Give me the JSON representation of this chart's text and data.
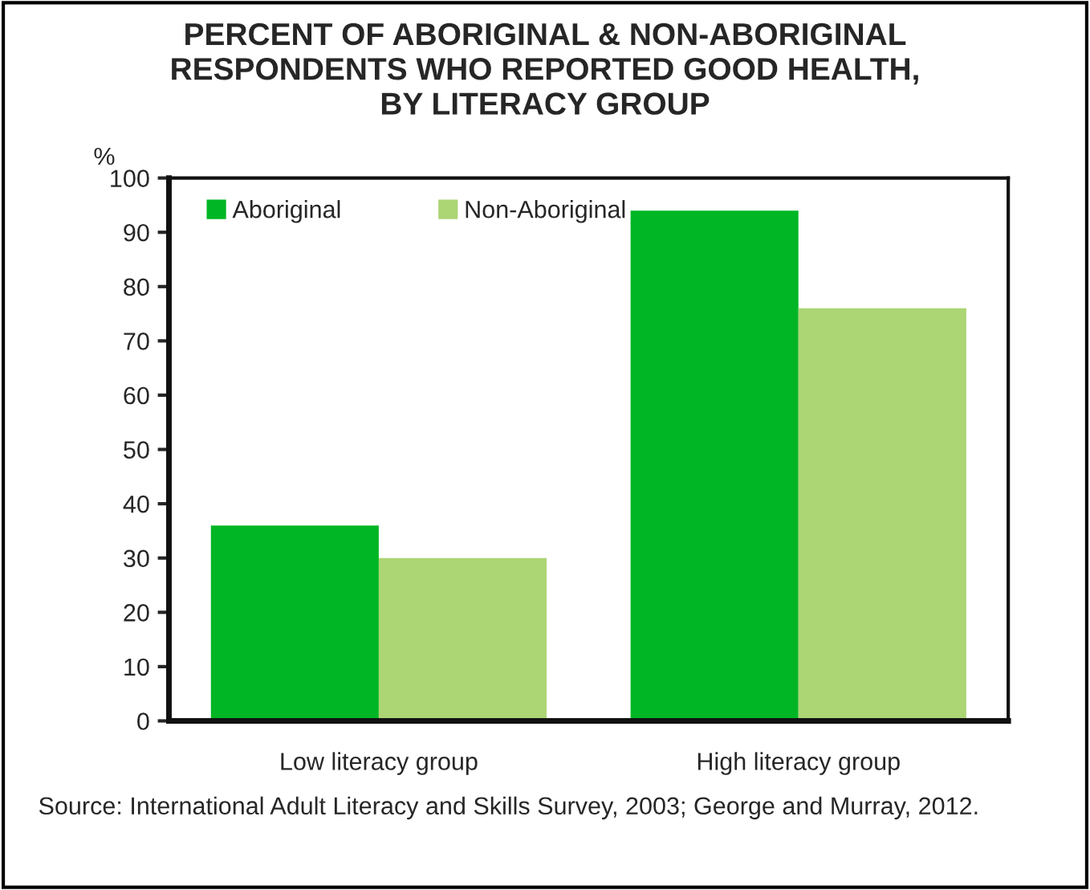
{
  "chart_data": {
    "type": "bar",
    "title": "PERCENT OF ABORIGINAL & NON-ABORIGINAL\nRESPONDENTS WHO REPORTED GOOD HEALTH,\nBY LITERACY GROUP",
    "ylabel": "%",
    "categories": [
      "Low literacy group",
      "High literacy group"
    ],
    "series": [
      {
        "name": "Aboriginal",
        "color": "#00b624",
        "values": [
          36,
          94
        ]
      },
      {
        "name": "Non-Aboriginal",
        "color": "#acd574",
        "values": [
          30,
          76
        ]
      }
    ],
    "ylim": [
      0,
      100
    ],
    "yticks": [
      0,
      10,
      20,
      30,
      40,
      50,
      60,
      70,
      80,
      90,
      100
    ],
    "grid": false,
    "legend": "top left",
    "annotations": [
      "Source: International Adult Literacy and Skills Survey, 2003; George and Murray, 2012."
    ]
  }
}
